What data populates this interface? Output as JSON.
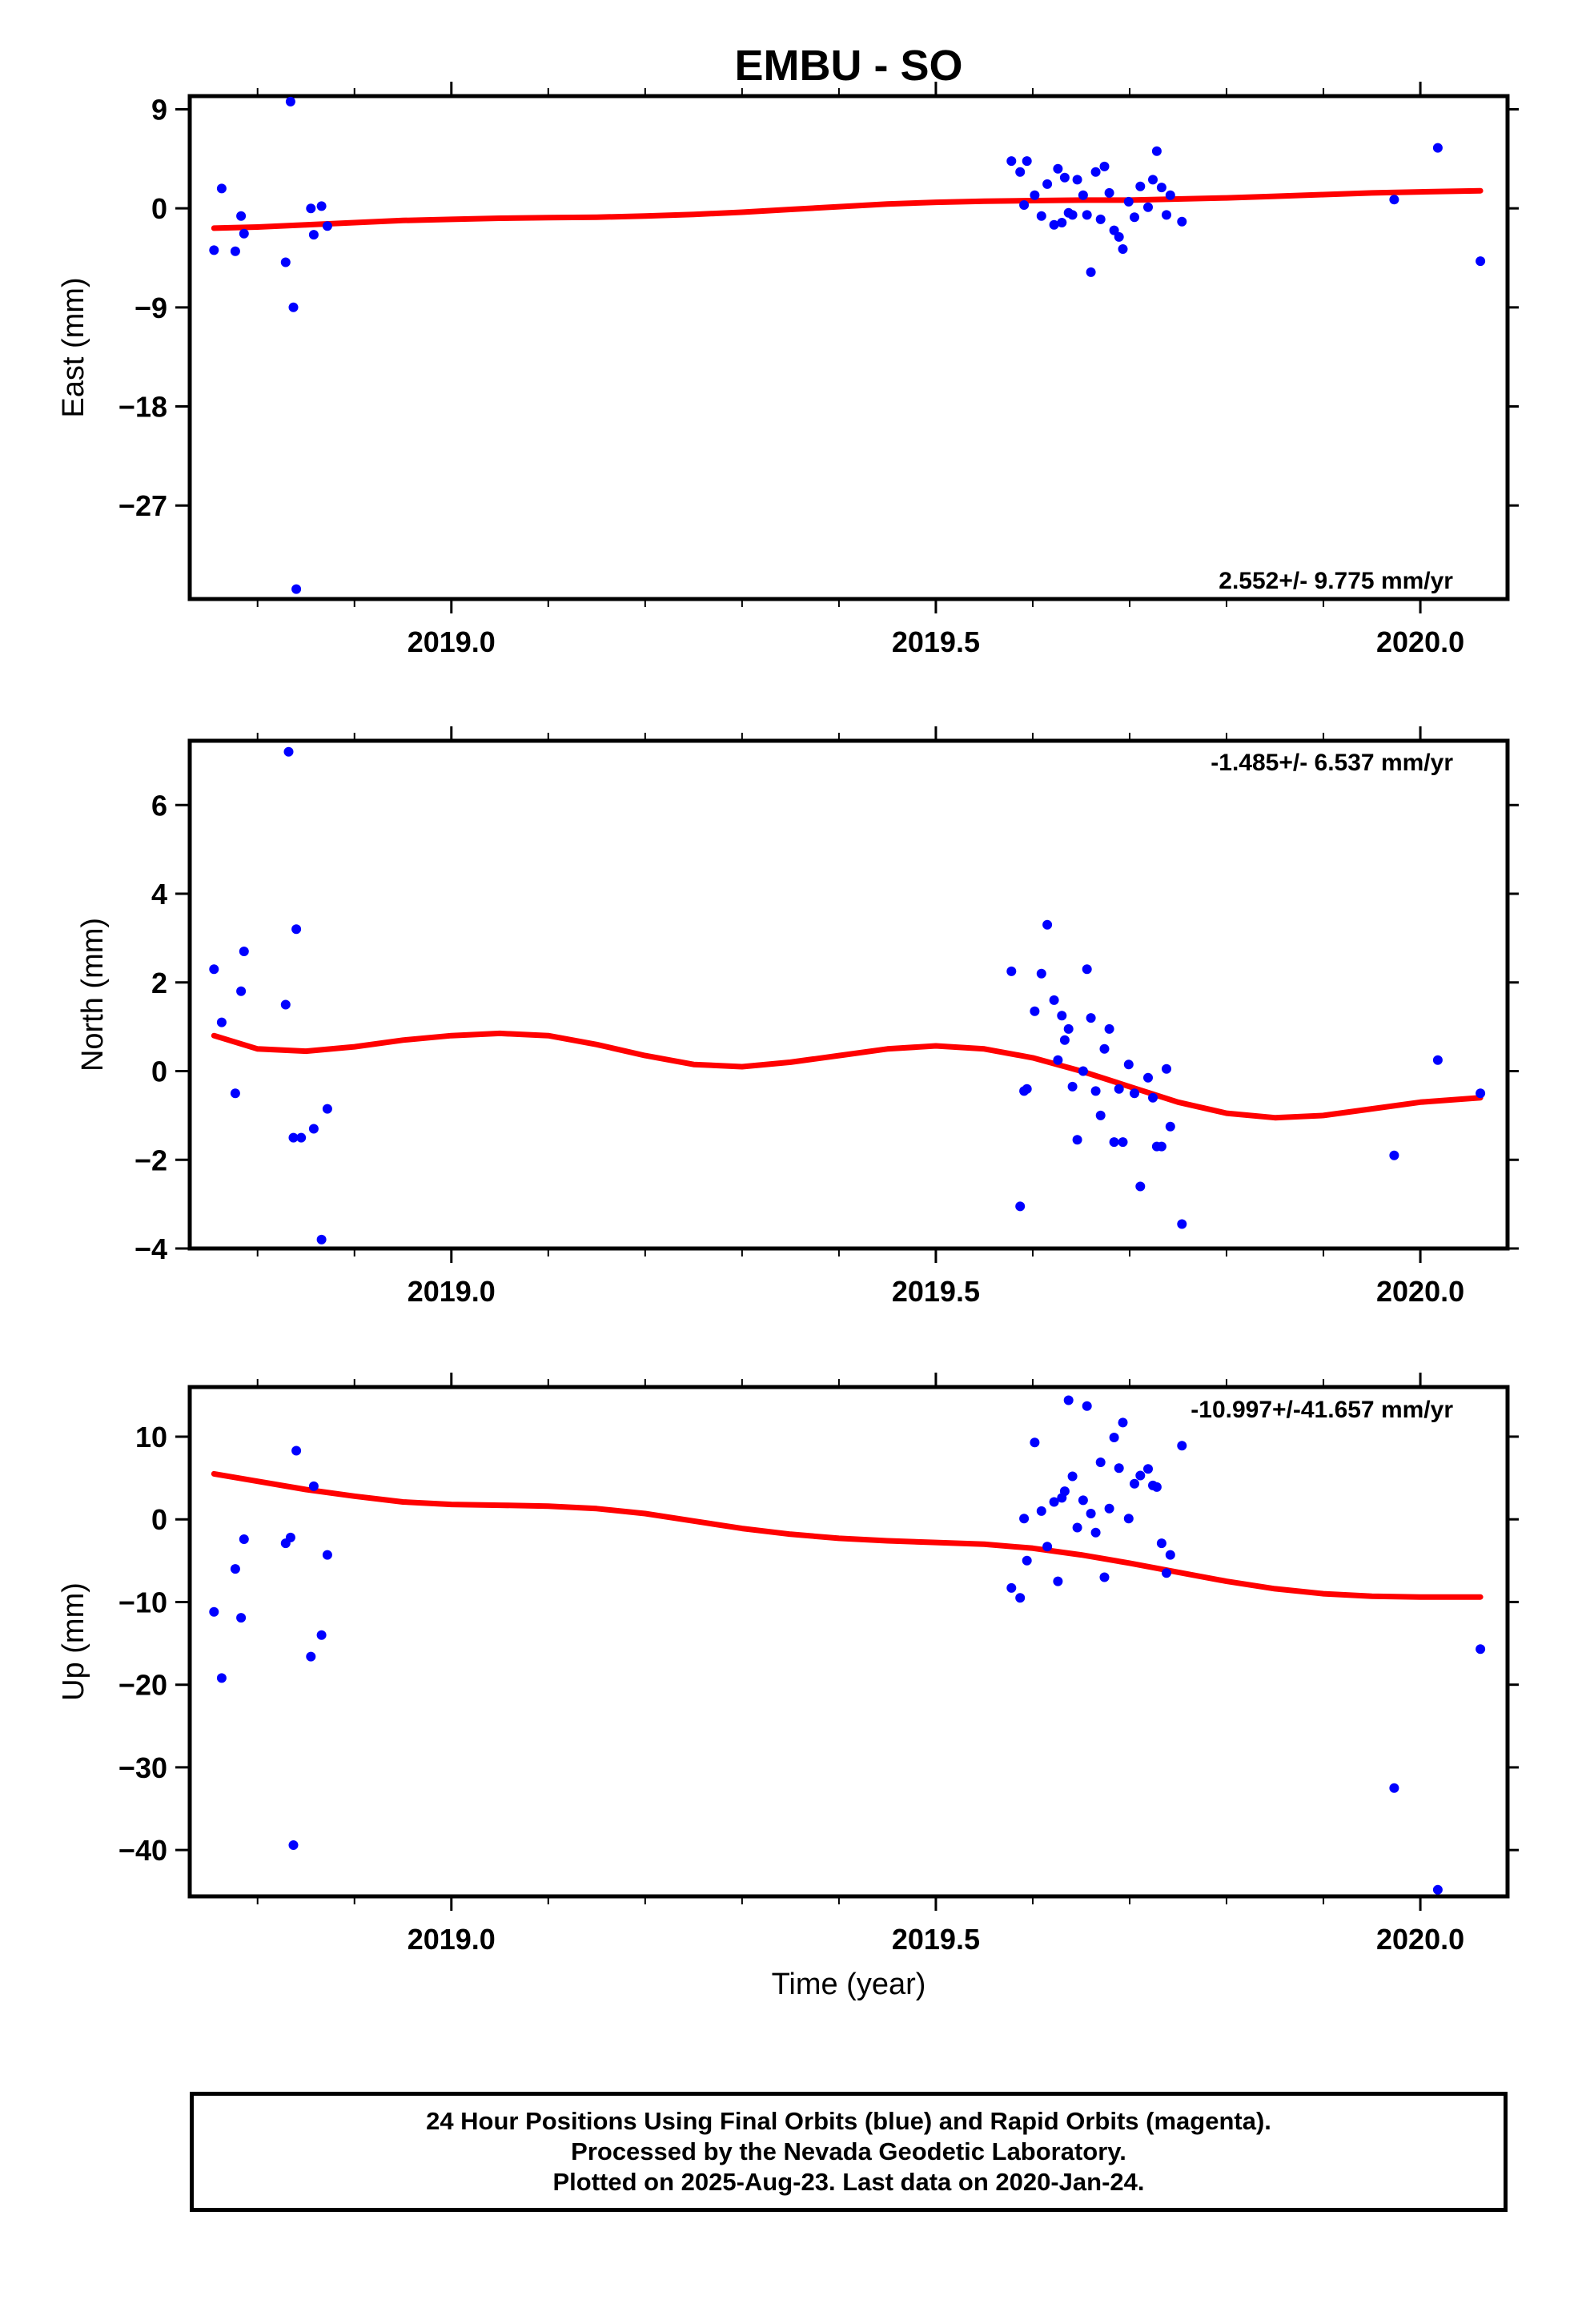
{
  "title": "EMBU - SO",
  "colors": {
    "final_orbits": "#0000ff",
    "model": "#ff0000",
    "frame": "#000000"
  },
  "chart_data": [
    {
      "type": "scatter",
      "ylabel": "East (mm)",
      "xlabel": "",
      "rate_text": "2.552+/- 9.775 mm/yr",
      "rate_position": "bottom-right",
      "xlim": [
        2018.73,
        2020.09
      ],
      "ylim": [
        -35.5,
        10.2
      ],
      "y_ticks": [
        9,
        0,
        -9,
        -18,
        -27
      ],
      "y_tick_labels": [
        "9",
        "0",
        "−9",
        "−18",
        "−27"
      ],
      "x_tick_labels": [
        "2019.0",
        "2019.5",
        "2020.0"
      ],
      "points": {
        "x": [
          2018.755,
          2018.763,
          2018.777,
          2018.783,
          2018.786,
          2018.829,
          2018.834,
          2018.837,
          2018.84,
          2018.855,
          2018.858,
          2018.866,
          2018.872,
          2019.578,
          2019.587,
          2019.591,
          2019.594,
          2019.602,
          2019.609,
          2019.615,
          2019.622,
          2019.626,
          2019.63,
          2019.633,
          2019.637,
          2019.641,
          2019.646,
          2019.652,
          2019.656,
          2019.66,
          2019.665,
          2019.67,
          2019.674,
          2019.679,
          2019.684,
          2019.689,
          2019.693,
          2019.699,
          2019.705,
          2019.711,
          2019.719,
          2019.724,
          2019.728,
          2019.733,
          2019.738,
          2019.742,
          2019.754,
          2019.973,
          2020.018,
          2020.062
        ],
        "y": [
          -3.8,
          1.8,
          -3.9,
          -0.7,
          -2.3,
          -4.9,
          9.7,
          -9.0,
          -34.6,
          0.0,
          -2.4,
          0.2,
          -1.6,
          4.3,
          3.3,
          0.3,
          4.3,
          1.2,
          -0.7,
          2.2,
          -1.5,
          3.6,
          -1.3,
          2.8,
          -0.4,
          -0.6,
          2.6,
          1.2,
          -0.6,
          -5.8,
          3.3,
          -1.0,
          3.8,
          1.4,
          -2.0,
          -2.6,
          -3.7,
          0.6,
          -0.8,
          2.0,
          0.1,
          2.6,
          5.2,
          1.9,
          -0.6,
          1.2,
          -1.2,
          0.8,
          5.5,
          -4.8
        ]
      },
      "model_curve": {
        "x": [
          2018.755,
          2018.8,
          2018.85,
          2018.9,
          2018.95,
          2019.0,
          2019.05,
          2019.1,
          2019.15,
          2019.2,
          2019.25,
          2019.3,
          2019.35,
          2019.4,
          2019.45,
          2019.5,
          2019.55,
          2019.6,
          2019.65,
          2019.7,
          2019.75,
          2019.8,
          2019.85,
          2019.9,
          2019.95,
          2020.0,
          2020.062
        ],
        "y": [
          -1.8,
          -1.7,
          -1.5,
          -1.3,
          -1.1,
          -1.0,
          -0.9,
          -0.85,
          -0.8,
          -0.7,
          -0.55,
          -0.35,
          -0.1,
          0.15,
          0.4,
          0.55,
          0.65,
          0.7,
          0.75,
          0.75,
          0.85,
          0.95,
          1.1,
          1.25,
          1.4,
          1.5,
          1.6
        ]
      }
    },
    {
      "type": "scatter",
      "ylabel": "North (mm)",
      "xlabel": "",
      "rate_text": "-1.485+/- 6.537 mm/yr",
      "rate_position": "top-right",
      "xlim": [
        2018.73,
        2020.09
      ],
      "ylim": [
        -4.0,
        7.45
      ],
      "y_ticks": [
        6,
        4,
        2,
        0,
        -2,
        -4
      ],
      "y_tick_labels": [
        "6",
        "4",
        "2",
        "0",
        "−2",
        "−4"
      ],
      "x_tick_labels": [
        "2019.0",
        "2019.5",
        "2020.0"
      ],
      "points": {
        "x": [
          2018.755,
          2018.763,
          2018.777,
          2018.783,
          2018.786,
          2018.829,
          2018.832,
          2018.837,
          2018.84,
          2018.845,
          2018.858,
          2018.866,
          2018.872,
          2019.578,
          2019.587,
          2019.591,
          2019.594,
          2019.602,
          2019.609,
          2019.615,
          2019.622,
          2019.626,
          2019.63,
          2019.633,
          2019.637,
          2019.641,
          2019.646,
          2019.652,
          2019.656,
          2019.66,
          2019.665,
          2019.67,
          2019.674,
          2019.679,
          2019.684,
          2019.689,
          2019.693,
          2019.699,
          2019.705,
          2019.711,
          2019.719,
          2019.724,
          2019.728,
          2019.733,
          2019.738,
          2019.742,
          2019.754,
          2019.973,
          2020.018,
          2020.062
        ],
        "y": [
          2.3,
          1.1,
          -0.5,
          1.8,
          2.7,
          1.5,
          7.2,
          -1.5,
          3.2,
          -1.5,
          -1.3,
          -3.8,
          -0.85,
          2.25,
          -3.05,
          -0.45,
          -0.4,
          1.35,
          2.2,
          3.3,
          1.6,
          0.25,
          1.25,
          0.7,
          0.95,
          -0.35,
          -1.55,
          0.0,
          2.3,
          1.2,
          -0.45,
          -1.0,
          0.5,
          0.95,
          -1.6,
          -0.4,
          -1.6,
          0.15,
          -0.5,
          -2.6,
          -0.15,
          -0.6,
          -1.7,
          -1.7,
          0.05,
          -1.25,
          -3.45,
          -1.9,
          0.25,
          -0.5
        ]
      },
      "model_curve": {
        "x": [
          2018.755,
          2018.8,
          2018.85,
          2018.9,
          2018.95,
          2019.0,
          2019.05,
          2019.1,
          2019.15,
          2019.2,
          2019.25,
          2019.3,
          2019.35,
          2019.4,
          2019.45,
          2019.5,
          2019.55,
          2019.6,
          2019.65,
          2019.7,
          2019.75,
          2019.8,
          2019.85,
          2019.9,
          2019.95,
          2020.0,
          2020.062
        ],
        "y": [
          0.8,
          0.5,
          0.45,
          0.55,
          0.7,
          0.8,
          0.85,
          0.8,
          0.6,
          0.35,
          0.15,
          0.1,
          0.2,
          0.35,
          0.5,
          0.57,
          0.5,
          0.3,
          0.0,
          -0.35,
          -0.7,
          -0.95,
          -1.05,
          -1.0,
          -0.85,
          -0.7,
          -0.6
        ]
      }
    },
    {
      "type": "scatter",
      "ylabel": "Up (mm)",
      "xlabel": "Time (year)",
      "rate_text": "-10.997+/-41.657 mm/yr",
      "rate_position": "top-right",
      "xlim": [
        2018.73,
        2020.09
      ],
      "ylim": [
        -45.6,
        16.0
      ],
      "y_ticks": [
        10,
        0,
        -10,
        -20,
        -30,
        -40
      ],
      "y_tick_labels": [
        "10",
        "0",
        "−10",
        "−20",
        "−30",
        "−40"
      ],
      "x_tick_labels": [
        "2019.0",
        "2019.5",
        "2020.0"
      ],
      "points": {
        "x": [
          2018.755,
          2018.763,
          2018.777,
          2018.783,
          2018.786,
          2018.829,
          2018.834,
          2018.837,
          2018.84,
          2018.855,
          2018.858,
          2018.866,
          2018.872,
          2019.578,
          2019.587,
          2019.591,
          2019.594,
          2019.602,
          2019.609,
          2019.615,
          2019.622,
          2019.626,
          2019.63,
          2019.633,
          2019.637,
          2019.641,
          2019.646,
          2019.652,
          2019.656,
          2019.66,
          2019.665,
          2019.67,
          2019.674,
          2019.679,
          2019.684,
          2019.689,
          2019.693,
          2019.699,
          2019.705,
          2019.711,
          2019.719,
          2019.724,
          2019.728,
          2019.733,
          2019.738,
          2019.742,
          2019.754,
          2019.973,
          2020.018,
          2020.062
        ],
        "y": [
          -11.2,
          -19.2,
          -6.0,
          -11.9,
          -2.4,
          -2.9,
          -2.2,
          -39.4,
          8.3,
          -16.6,
          4.0,
          -14.0,
          -4.3,
          -8.3,
          -9.5,
          0.1,
          -5.0,
          9.3,
          1.0,
          -3.3,
          2.1,
          -7.5,
          2.6,
          3.4,
          14.4,
          5.2,
          -1.0,
          2.3,
          13.7,
          0.7,
          -1.6,
          6.9,
          -7.0,
          1.3,
          9.9,
          6.2,
          11.7,
          0.1,
          4.3,
          5.3,
          6.1,
          4.1,
          3.9,
          -2.9,
          -6.5,
          -4.3,
          8.9,
          -32.5,
          -44.8,
          -15.7
        ]
      },
      "model_curve": {
        "x": [
          2018.755,
          2018.8,
          2018.85,
          2018.9,
          2018.95,
          2019.0,
          2019.05,
          2019.1,
          2019.15,
          2019.2,
          2019.25,
          2019.3,
          2019.35,
          2019.4,
          2019.45,
          2019.5,
          2019.55,
          2019.6,
          2019.65,
          2019.7,
          2019.75,
          2019.8,
          2019.85,
          2019.9,
          2019.95,
          2020.0,
          2020.062
        ],
        "y": [
          5.5,
          4.6,
          3.6,
          2.8,
          2.1,
          1.8,
          1.7,
          1.6,
          1.3,
          0.7,
          -0.2,
          -1.1,
          -1.8,
          -2.3,
          -2.6,
          -2.8,
          -3.0,
          -3.5,
          -4.3,
          -5.3,
          -6.4,
          -7.5,
          -8.4,
          -9.0,
          -9.3,
          -9.4,
          -9.4
        ]
      }
    }
  ],
  "footer": {
    "line1": "24 Hour Positions Using Final Orbits (blue) and Rapid Orbits (magenta).",
    "line2": "Processed by the Nevada Geodetic Laboratory.",
    "line3": "Plotted on 2025-Aug-23. Last data on 2020-Jan-24."
  }
}
